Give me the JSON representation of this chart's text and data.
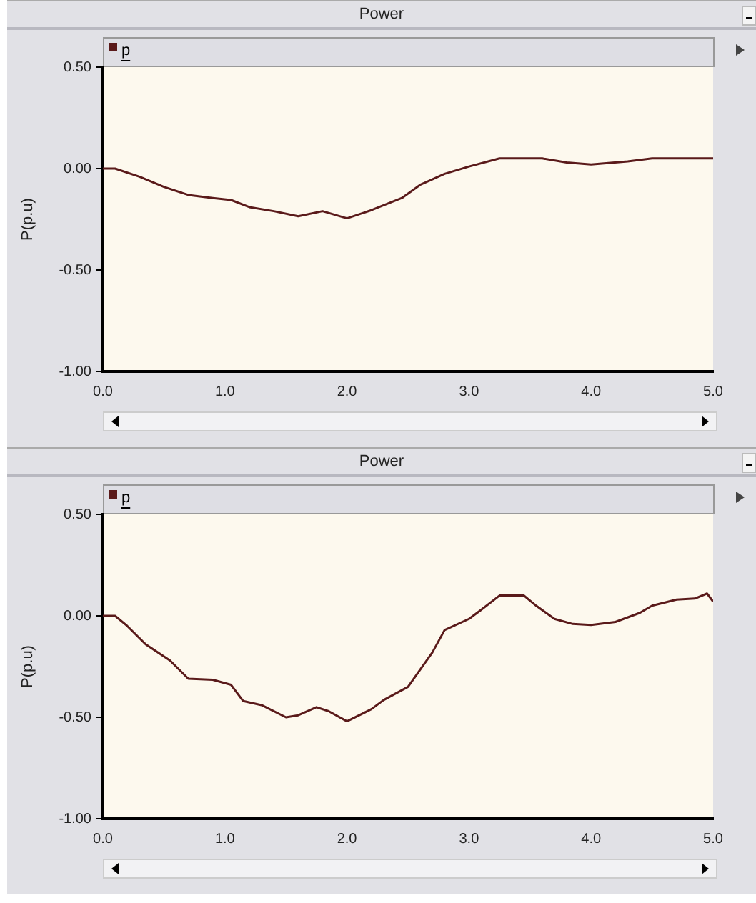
{
  "chart_data": [
    {
      "type": "line",
      "title": "Power",
      "ylabel": "P(p.u)",
      "legend": "top left",
      "grid": false,
      "marker": "none",
      "xlim": [
        0,
        5
      ],
      "ylim": [
        -1,
        0.5
      ],
      "xticks": [
        {
          "value": 0,
          "label": "0.0"
        },
        {
          "value": 1,
          "label": "1.0"
        },
        {
          "value": 2,
          "label": "2.0"
        },
        {
          "value": 3,
          "label": "3.0"
        },
        {
          "value": 4,
          "label": "4.0"
        },
        {
          "value": 5,
          "label": "5.0"
        }
      ],
      "yticks": [
        {
          "value": 0.5,
          "label": "0.50"
        },
        {
          "value": 0,
          "label": "0.00"
        },
        {
          "value": -0.5,
          "label": "-0.50"
        },
        {
          "value": -1,
          "label": "-1.00"
        }
      ],
      "x": [
        0,
        0.1,
        0.3,
        0.5,
        0.7,
        0.9,
        1.05,
        1.2,
        1.4,
        1.6,
        1.8,
        2.0,
        2.2,
        2.45,
        2.6,
        2.8,
        3.0,
        3.25,
        3.6,
        3.8,
        4.0,
        4.3,
        4.5,
        5.0
      ],
      "series": [
        {
          "name": "p",
          "color": "#5a1a1a",
          "values": [
            0,
            0,
            -0.04,
            -0.09,
            -0.13,
            -0.145,
            -0.155,
            -0.19,
            -0.21,
            -0.235,
            -0.21,
            -0.245,
            -0.205,
            -0.145,
            -0.08,
            -0.026,
            0.01,
            0.05,
            0.05,
            0.03,
            0.02,
            0.035,
            0.05,
            0.05
          ]
        }
      ]
    },
    {
      "type": "line",
      "title": "Power",
      "ylabel": "P(p.u)",
      "legend": "top left",
      "grid": false,
      "marker": "none",
      "xlim": [
        0,
        5
      ],
      "ylim": [
        -1,
        0.5
      ],
      "xticks": [
        {
          "value": 0,
          "label": "0.0"
        },
        {
          "value": 1,
          "label": "1.0"
        },
        {
          "value": 2,
          "label": "2.0"
        },
        {
          "value": 3,
          "label": "3.0"
        },
        {
          "value": 4,
          "label": "4.0"
        },
        {
          "value": 5,
          "label": "5.0"
        }
      ],
      "yticks": [
        {
          "value": 0.5,
          "label": "0.50"
        },
        {
          "value": 0,
          "label": "0.00"
        },
        {
          "value": -0.5,
          "label": "-0.50"
        },
        {
          "value": -1,
          "label": "-1.00"
        }
      ],
      "x": [
        0,
        0.1,
        0.2,
        0.35,
        0.55,
        0.7,
        0.9,
        1.05,
        1.15,
        1.3,
        1.5,
        1.6,
        1.75,
        1.85,
        2.0,
        2.2,
        2.3,
        2.5,
        2.7,
        2.8,
        3.0,
        3.1,
        3.25,
        3.45,
        3.55,
        3.7,
        3.85,
        4.0,
        4.2,
        4.4,
        4.5,
        4.7,
        4.85,
        4.95,
        5.0
      ],
      "series": [
        {
          "name": "p",
          "color": "#5a1a1a",
          "values": [
            0,
            0,
            -0.05,
            -0.14,
            -0.22,
            -0.31,
            -0.315,
            -0.34,
            -0.42,
            -0.44,
            -0.5,
            -0.49,
            -0.45,
            -0.47,
            -0.52,
            -0.46,
            -0.415,
            -0.35,
            -0.18,
            -0.07,
            -0.015,
            0.03,
            0.1,
            0.1,
            0.05,
            -0.015,
            -0.04,
            -0.045,
            -0.03,
            0.015,
            0.05,
            0.08,
            0.085,
            0.11,
            0.07
          ]
        }
      ]
    }
  ]
}
